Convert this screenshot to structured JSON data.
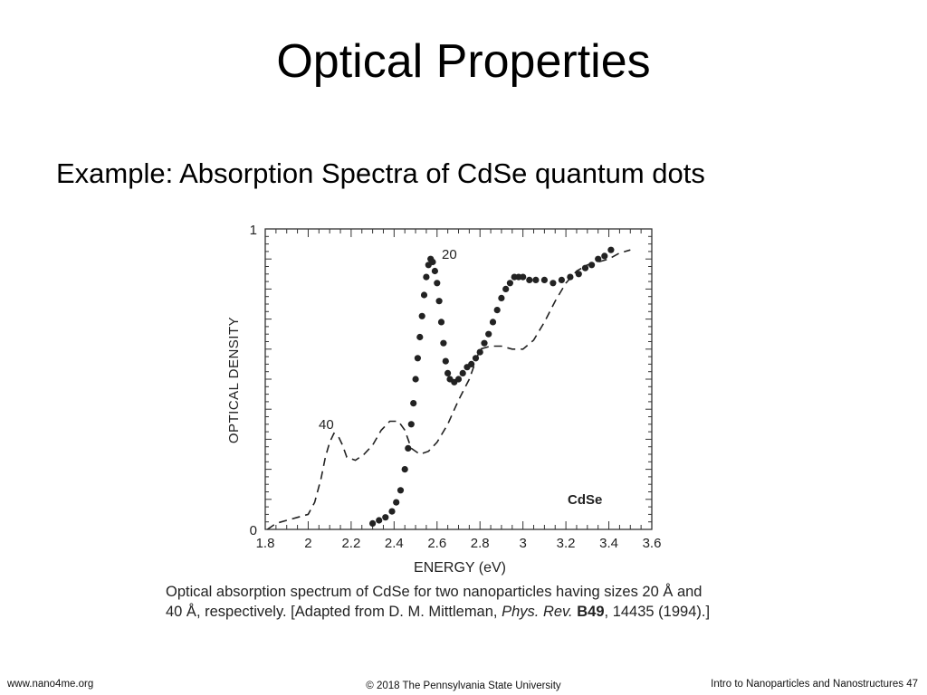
{
  "slide": {
    "title": "Optical Properties",
    "subtitle": "Example: Absorption Spectra of CdSe quantum dots"
  },
  "caption": {
    "line1": "Optical absorption spectrum of CdSe for two nanoparticles having sizes 20 Å and",
    "line2_a": "40 Å, respectively. [Adapted from D. M. Mittleman, ",
    "line2_journal": "Phys. Rev.",
    "line2_volume": "B49",
    "line2_b": ", 14435 (1994).]"
  },
  "footer": {
    "left": "www.nano4me.org",
    "center": "© 2018 The Pennsylvania State University",
    "right": "Intro to Nanoparticles and Nanostructures 47"
  },
  "chart_data": {
    "type": "line",
    "title": "",
    "xlabel": "ENERGY (eV)",
    "ylabel": "OPTICAL DENSITY",
    "xlim": [
      1.8,
      3.6
    ],
    "ylim": [
      0,
      1
    ],
    "x_ticks": [
      "1.8",
      "2",
      "2.2",
      "2.4",
      "2.6",
      "2.8",
      "3",
      "3.2",
      "3.4",
      "3.6"
    ],
    "y_ticks": [
      "0",
      "1"
    ],
    "grid": false,
    "annotation": "CdSe",
    "series": [
      {
        "name": "40",
        "style": "dashed",
        "color": "#222222",
        "x": [
          1.81,
          1.85,
          1.9,
          1.95,
          2.0,
          2.03,
          2.06,
          2.08,
          2.1,
          2.12,
          2.14,
          2.16,
          2.18,
          2.22,
          2.26,
          2.3,
          2.34,
          2.38,
          2.42,
          2.45,
          2.48,
          2.52,
          2.56,
          2.6,
          2.65,
          2.7,
          2.75,
          2.8,
          2.85,
          2.9,
          2.95,
          3.0,
          3.05,
          3.1,
          3.15,
          3.2,
          3.25,
          3.3,
          3.35,
          3.4,
          3.45,
          3.5
        ],
        "y": [
          0.0,
          0.02,
          0.03,
          0.04,
          0.05,
          0.09,
          0.17,
          0.24,
          0.29,
          0.32,
          0.31,
          0.28,
          0.24,
          0.23,
          0.25,
          0.28,
          0.33,
          0.36,
          0.36,
          0.33,
          0.27,
          0.25,
          0.26,
          0.29,
          0.35,
          0.43,
          0.5,
          0.6,
          0.61,
          0.61,
          0.6,
          0.6,
          0.63,
          0.69,
          0.76,
          0.82,
          0.86,
          0.88,
          0.89,
          0.9,
          0.92,
          0.93
        ]
      },
      {
        "name": "20",
        "style": "dotted",
        "color": "#222222",
        "x": [
          2.3,
          2.33,
          2.36,
          2.39,
          2.41,
          2.43,
          2.45,
          2.465,
          2.48,
          2.49,
          2.5,
          2.51,
          2.52,
          2.53,
          2.54,
          2.55,
          2.56,
          2.57,
          2.58,
          2.59,
          2.6,
          2.61,
          2.62,
          2.63,
          2.64,
          2.65,
          2.66,
          2.68,
          2.7,
          2.72,
          2.74,
          2.76,
          2.78,
          2.8,
          2.82,
          2.84,
          2.86,
          2.88,
          2.9,
          2.92,
          2.94,
          2.96,
          2.98,
          3.0,
          3.03,
          3.06,
          3.1,
          3.14,
          3.18,
          3.22,
          3.26,
          3.29,
          3.32,
          3.35,
          3.38,
          3.41
        ],
        "y": [
          0.02,
          0.03,
          0.04,
          0.06,
          0.09,
          0.13,
          0.2,
          0.27,
          0.35,
          0.42,
          0.5,
          0.57,
          0.64,
          0.71,
          0.78,
          0.84,
          0.88,
          0.9,
          0.89,
          0.86,
          0.82,
          0.76,
          0.69,
          0.62,
          0.56,
          0.52,
          0.5,
          0.49,
          0.5,
          0.52,
          0.54,
          0.55,
          0.57,
          0.59,
          0.62,
          0.65,
          0.69,
          0.73,
          0.77,
          0.8,
          0.82,
          0.84,
          0.84,
          0.84,
          0.83,
          0.83,
          0.83,
          0.82,
          0.83,
          0.84,
          0.85,
          0.87,
          0.88,
          0.9,
          0.91,
          0.93
        ]
      }
    ],
    "series_labels": [
      {
        "series": "40",
        "text": "40"
      },
      {
        "series": "20",
        "text": "20"
      }
    ]
  }
}
